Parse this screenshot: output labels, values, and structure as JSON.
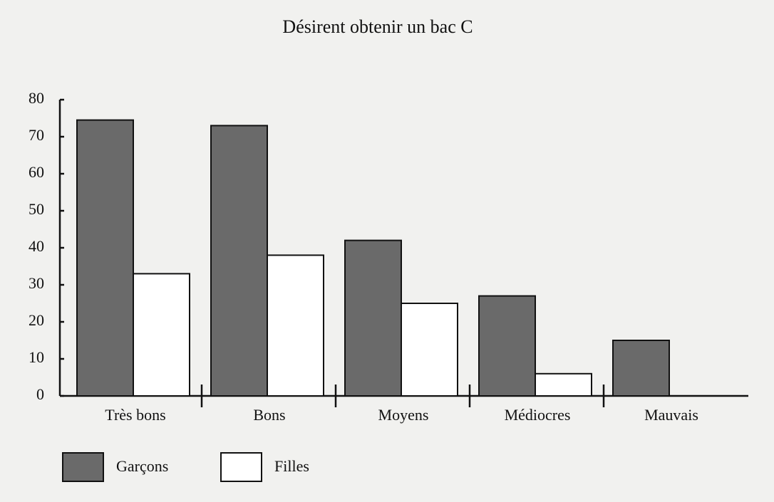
{
  "chart_data": {
    "type": "bar",
    "title": "Désirent obtenir un bac C",
    "categories": [
      "Très bons",
      "Bons",
      "Moyens",
      "Médiocres",
      "Mauvais"
    ],
    "series": [
      {
        "name": "Garçons",
        "color": "#6a6a6a",
        "values": [
          74.5,
          73,
          42,
          27,
          15
        ]
      },
      {
        "name": "Filles",
        "color": "#ffffff",
        "values": [
          33,
          38,
          25,
          6,
          0
        ]
      }
    ],
    "ylim": [
      0,
      80
    ],
    "yticks": [
      0,
      10,
      20,
      30,
      40,
      50,
      60,
      70,
      80
    ],
    "grid": false
  }
}
